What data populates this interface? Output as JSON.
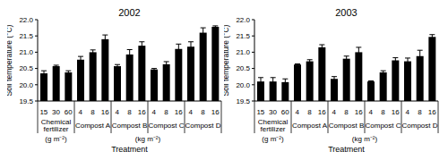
{
  "chart_data": [
    {
      "type": "bar",
      "title": "2002",
      "y_label": "Soil temperature (°C)",
      "x_label": "Treatment",
      "color": "#000000",
      "categories": [
        "15",
        "30",
        "60",
        "4",
        "8",
        "16",
        "4",
        "8",
        "16",
        "4",
        "8",
        "16",
        "4",
        "8",
        "16"
      ],
      "groups": [
        "Chemical fertilizer",
        "Chemical fertilizer",
        "Chemical fertilizer",
        "Compost A",
        "Compost A",
        "Compost A",
        "Compost B",
        "Compost B",
        "Compost B",
        "Compost C",
        "Compost C",
        "Compost C",
        "Compost D",
        "Compost D",
        "Compost D"
      ],
      "units": [
        "(g m⁻²)",
        "(g m⁻²)",
        "(g m⁻²)",
        "(kg m⁻²)",
        "(kg m⁻²)",
        "(kg m⁻²)",
        "(kg m⁻²)",
        "(kg m⁻²)",
        "(kg m⁻²)",
        "(kg m⁻²)",
        "(kg m⁻²)",
        "(kg m⁻²)",
        "(kg m⁻²)",
        "(kg m⁻²)",
        "(kg m⁻²)"
      ],
      "values": [
        20.35,
        20.57,
        20.38,
        20.77,
        21.0,
        21.4,
        20.57,
        20.93,
        21.2,
        20.47,
        20.63,
        21.1,
        21.17,
        21.6,
        21.78
      ],
      "errors": [
        0.08,
        0.03,
        0.05,
        0.1,
        0.07,
        0.13,
        0.05,
        0.15,
        0.12,
        0.03,
        0.08,
        0.15,
        0.15,
        0.15,
        0.03
      ],
      "ylim": [
        19.5,
        22.0
      ],
      "yticks": [
        19.5,
        {
          "value": 20,
          "label": "20.0"
        },
        20.5,
        {
          "value": 21,
          "label": "21.0"
        },
        21.5,
        {
          "value": 22,
          "label": "22.0"
        }
      ]
    },
    {
      "type": "bar",
      "title": "2003",
      "y_label": "Soil temperature (°C)",
      "x_label": "Treatment",
      "color": "#000000",
      "categories": [
        "15",
        "30",
        "60",
        "4",
        "8",
        "16",
        "4",
        "8",
        "16",
        "4",
        "8",
        "16",
        "4",
        "8",
        "16"
      ],
      "groups": [
        "Chemical fertilizer",
        "Chemical fertilizer",
        "Chemical fertilizer",
        "Compost A",
        "Compost A",
        "Compost A",
        "Compost B",
        "Compost B",
        "Compost B",
        "Compost C",
        "Compost C",
        "Compost C",
        "Compost D",
        "Compost D",
        "Compost D"
      ],
      "units": [
        "(g m⁻²)",
        "(g m⁻²)",
        "(g m⁻²)",
        "(kg m⁻²)",
        "(kg m⁻²)",
        "(kg m⁻²)",
        "(kg m⁻²)",
        "(kg m⁻²)",
        "(kg m⁻²)",
        "(kg m⁻²)",
        "(kg m⁻²)",
        "(kg m⁻²)",
        "(kg m⁻²)",
        "(kg m⁻²)",
        "(kg m⁻²)"
      ],
      "values": [
        20.1,
        20.1,
        20.08,
        20.62,
        20.72,
        21.15,
        20.18,
        20.8,
        21.0,
        20.1,
        20.38,
        20.75,
        20.72,
        20.88,
        21.47
      ],
      "errors": [
        0.12,
        0.12,
        0.1,
        0.02,
        0.05,
        0.08,
        0.07,
        0.08,
        0.15,
        0.02,
        0.05,
        0.08,
        0.1,
        0.18,
        0.07
      ],
      "ylim": [
        19.5,
        22.0
      ],
      "yticks": [
        19.5,
        {
          "value": 20,
          "label": "20.0"
        },
        20.5,
        {
          "value": 21,
          "label": "21.0"
        },
        21.5,
        {
          "value": 22,
          "label": "22.0"
        }
      ]
    }
  ]
}
